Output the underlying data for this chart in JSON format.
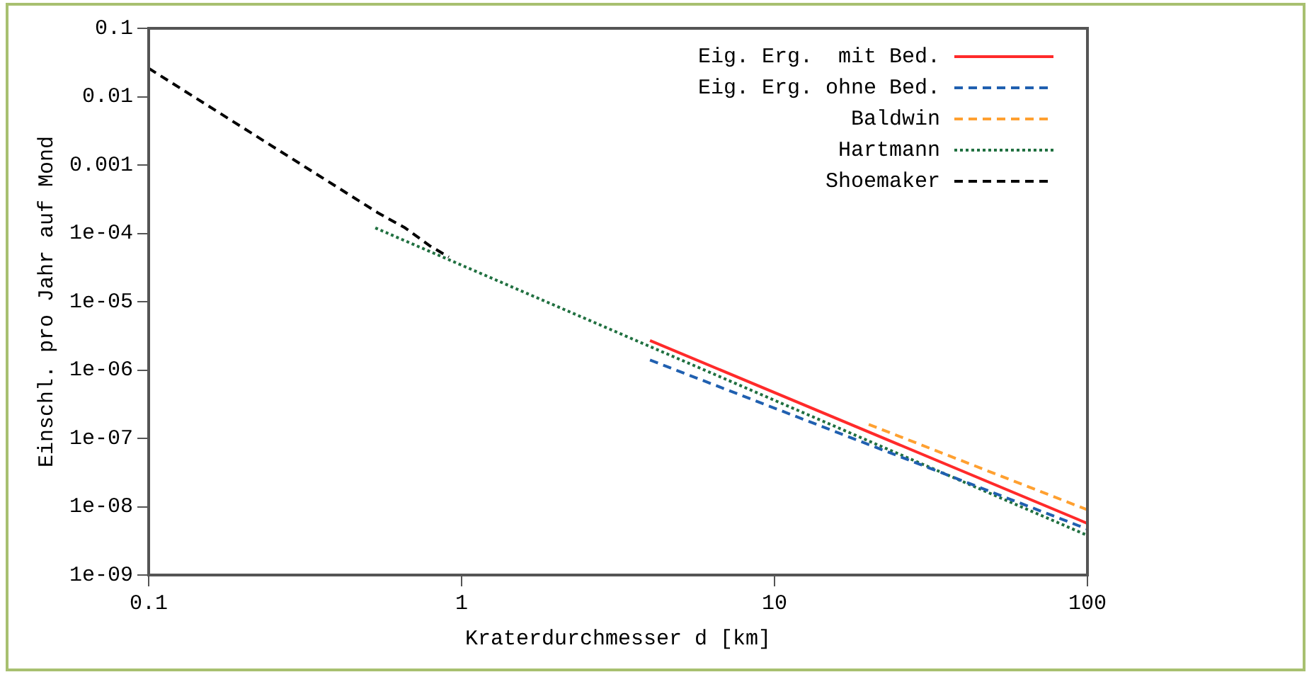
{
  "chart_data": {
    "type": "line",
    "xlabel": "Kraterdurchmesser d [km]",
    "ylabel": "Einschl. pro Jahr auf Mond",
    "log": "xy",
    "grid": false,
    "legend": "top right",
    "marker": "none",
    "xlim": [
      0.1,
      100
    ],
    "xticks": [
      0.1,
      1,
      10,
      100
    ],
    "ylim": [
      1e-09,
      0.1
    ],
    "yticks": [
      {
        "value": 1e-09,
        "label": "1e-09"
      },
      {
        "value": 1e-08,
        "label": "1e-08"
      },
      {
        "value": 1e-07,
        "label": "1e-07"
      },
      {
        "value": 1e-06,
        "label": "1e-06"
      },
      {
        "value": 1e-05,
        "label": "1e-05"
      },
      {
        "value": 0.0001,
        "label": "1e-04"
      },
      {
        "value": 0.001,
        "label": "0.001"
      },
      {
        "value": 0.01,
        "label": "0.01"
      },
      {
        "value": 0.1,
        "label": "0.1"
      }
    ],
    "series": [
      {
        "name": "Eig. Erg.  mit Bed.",
        "color": "#ff2a2a",
        "line_style": "solid",
        "x": [
          4,
          100
        ],
        "values": [
          2.7e-06,
          5.7e-09
        ]
      },
      {
        "name": "Eig. Erg. ohne Bed.",
        "color": "#2060b0",
        "line_style": "dashed",
        "x": [
          4,
          100
        ],
        "values": [
          1.4e-06,
          4.7e-09
        ]
      },
      {
        "name": "Baldwin",
        "color": "#ffa030",
        "line_style": "dashed",
        "x": [
          20,
          100
        ],
        "values": [
          1.6e-07,
          9e-09
        ]
      },
      {
        "name": "Hartmann",
        "color": "#207040",
        "line_style": "dotted",
        "x": [
          0.53,
          100
        ],
        "values": [
          0.00012,
          3.8e-09
        ]
      },
      {
        "name": "Shoemaker",
        "color": "#000000",
        "line_style": "dashed",
        "x": [
          0.1,
          0.54,
          0.66,
          0.79,
          0.91
        ],
        "values": [
          0.026,
          0.0002,
          0.00012,
          6.6e-05,
          4.5e-05
        ]
      }
    ]
  }
}
